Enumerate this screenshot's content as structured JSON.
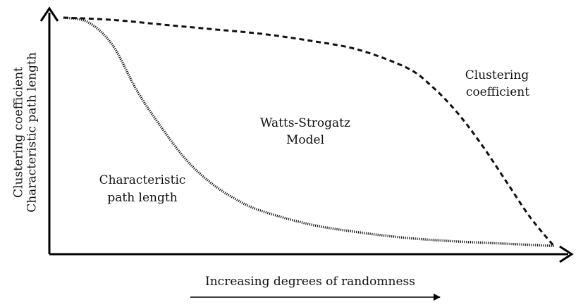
{
  "chart_data": {
    "type": "line",
    "title": "",
    "xlabel": "Increasing degrees of randomness",
    "ylabel": [
      "Clustering coefficient",
      "Characteristic path length"
    ],
    "xlim": [
      0,
      1
    ],
    "ylim": [
      0,
      1
    ],
    "grid": false,
    "legend": "none",
    "center_annotation": [
      "Watts-Strogatz",
      "Model"
    ],
    "series": [
      {
        "name": "Clustering coefficient",
        "label_lines": [
          "Clustering",
          "coefficient"
        ],
        "style": "dashed",
        "x": [
          0.0,
          0.1,
          0.2,
          0.3,
          0.4,
          0.5,
          0.6,
          0.7,
          0.75,
          0.8,
          0.85,
          0.9,
          0.95,
          1.0
        ],
        "y": [
          1.0,
          0.99,
          0.97,
          0.95,
          0.93,
          0.9,
          0.86,
          0.78,
          0.7,
          0.59,
          0.45,
          0.29,
          0.13,
          0.0
        ]
      },
      {
        "name": "Characteristic path length",
        "label_lines": [
          "Characteristic",
          "path length"
        ],
        "style": "dotted",
        "x": [
          0.0,
          0.05,
          0.1,
          0.15,
          0.2,
          0.25,
          0.3,
          0.35,
          0.4,
          0.5,
          0.6,
          0.7,
          0.8,
          0.9,
          1.0
        ],
        "y": [
          1.0,
          0.98,
          0.88,
          0.68,
          0.52,
          0.38,
          0.28,
          0.21,
          0.16,
          0.1,
          0.065,
          0.04,
          0.025,
          0.015,
          0.005
        ]
      }
    ],
    "colors": {
      "line": "#111111",
      "axis": "#000000"
    }
  }
}
